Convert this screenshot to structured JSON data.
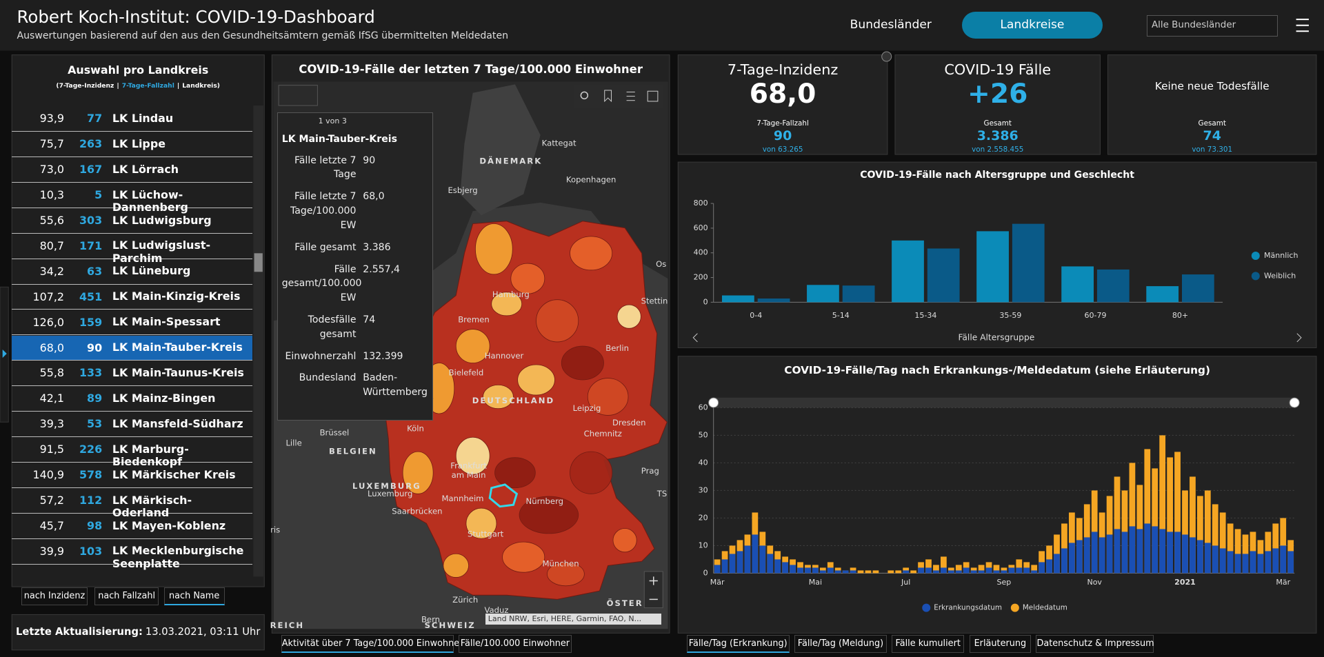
{
  "header": {
    "title": "Robert Koch-Institut: COVID-19-Dashboard",
    "subtitle": "Auswertungen basierend auf den aus den Gesundheitsämtern gemäß IfSG übermittelten Meldedaten",
    "tabs": [
      "Bundesländer",
      "Landkreise"
    ],
    "dropdown": "Alle Bundesländer"
  },
  "list": {
    "title": "Auswahl pro Landkreis",
    "subtitle": [
      "(7-Tage-Inzidenz",
      "|",
      "7-Tage-Fallzahl",
      "|",
      "Landkreis)"
    ],
    "rows": [
      {
        "incidence": "93,9",
        "cases": "77",
        "name": "LK Lindau"
      },
      {
        "incidence": "75,7",
        "cases": "263",
        "name": "LK Lippe"
      },
      {
        "incidence": "73,0",
        "cases": "167",
        "name": "LK Lörrach"
      },
      {
        "incidence": "10,3",
        "cases": "5",
        "name": "LK Lüchow-Dannenberg"
      },
      {
        "incidence": "55,6",
        "cases": "303",
        "name": "LK Ludwigsburg"
      },
      {
        "incidence": "80,7",
        "cases": "171",
        "name": "LK Ludwigslust-Parchim"
      },
      {
        "incidence": "34,2",
        "cases": "63",
        "name": "LK Lüneburg"
      },
      {
        "incidence": "107,2",
        "cases": "451",
        "name": "LK Main-Kinzig-Kreis"
      },
      {
        "incidence": "126,0",
        "cases": "159",
        "name": "LK Main-Spessart"
      },
      {
        "incidence": "68,0",
        "cases": "90",
        "name": "LK Main-Tauber-Kreis",
        "selected": true
      },
      {
        "incidence": "55,8",
        "cases": "133",
        "name": "LK Main-Taunus-Kreis"
      },
      {
        "incidence": "42,1",
        "cases": "89",
        "name": "LK Mainz-Bingen"
      },
      {
        "incidence": "39,3",
        "cases": "53",
        "name": "LK Mansfeld-Südharz"
      },
      {
        "incidence": "91,5",
        "cases": "226",
        "name": "LK Marburg-Biedenkopf"
      },
      {
        "incidence": "140,9",
        "cases": "578",
        "name": "LK Märkischer Kreis"
      },
      {
        "incidence": "57,2",
        "cases": "112",
        "name": "LK Märkisch-Oderland"
      },
      {
        "incidence": "45,7",
        "cases": "98",
        "name": "LK Mayen-Koblenz"
      },
      {
        "incidence": "39,9",
        "cases": "103",
        "name": "LK Mecklenburgische Seenplatte"
      }
    ],
    "sort_buttons": [
      "nach Inzidenz",
      "nach Fallzahl",
      "nach Name"
    ]
  },
  "update": {
    "label": "Letzte Aktualisierung:",
    "value": "13.03.2021, 03:11 Uhr"
  },
  "map": {
    "title": "COVID-19-Fälle der letzten 7 Tage/100.000 Einwohner",
    "popup": {
      "pager": "1 von 3",
      "title": "LK Main-Tauber-Kreis",
      "fields": [
        {
          "label": "Fälle letzte 7 Tage",
          "value": "90"
        },
        {
          "label": "Fälle letzte 7 Tage/100.000 EW",
          "value": "68,0"
        },
        {
          "label": "Fälle gesamt",
          "value": "3.386"
        },
        {
          "label": "Fälle gesamt/100.000 EW",
          "value": "2.557,4"
        },
        {
          "label": "Todesfälle gesamt",
          "value": "74"
        },
        {
          "label": "Einwohnerzahl",
          "value": "132.399"
        },
        {
          "label": "Bundesland",
          "value": "Baden-Württemberg"
        }
      ]
    },
    "labels": [
      "DÄNEMARK",
      "Kattegat",
      "Kopenhagen",
      "Esbjerg",
      "Hamburg",
      "Stettin",
      "Bremen",
      "Hannover",
      "Berlin",
      "Bielefeld",
      "DEUTSCHLAND",
      "Leipzig",
      "Dresden",
      "Köln",
      "Brüssel",
      "Chemnitz",
      "Lille",
      "BELGIEN",
      "Frankfurt",
      "am Main",
      "Prag",
      "LUXEMBURG",
      "Luxemburg",
      "TS",
      "Mannheim",
      "Nürnberg",
      "Saarbrücken",
      "Stuttgart",
      "ris",
      "München",
      "Zürich",
      "ÖSTER",
      "Vaduz",
      "Bern",
      "SCHWEIZ",
      "REICH",
      "Os"
    ],
    "attribution": "Land NRW, Esri, HERE, Garmin, FAO, N...",
    "tabs": [
      "Aktivität über 7 Tage/100.000 Einwohner",
      "Fälle/100.000 Einwohner"
    ]
  },
  "cards": [
    {
      "title": "7-Tage-Inzidenz",
      "value": "68,0",
      "sub_label": "7-Tage-Fallzahl",
      "sub_value": "90",
      "sub_total": "von 63.265"
    },
    {
      "title": "COVID-19 Fälle",
      "value": "+26",
      "sub_label": "Gesamt",
      "sub_value": "3.386",
      "sub_total": "von 2.558.455"
    },
    {
      "title": "Keine neue Todesfälle",
      "sub_label": "Gesamt",
      "sub_value": "74",
      "sub_total": "von 73.301"
    }
  ],
  "chart_data": [
    {
      "type": "bar",
      "title": "COVID-19-Fälle nach Altersgruppe und Geschlecht",
      "x_label": "Fälle Altersgruppe",
      "categories": [
        "0-4",
        "5-14",
        "15-34",
        "35-59",
        "60-79",
        "80+"
      ],
      "series": [
        {
          "name": "Männlich",
          "color": "#0b8bb8",
          "values": [
            55,
            140,
            500,
            575,
            290,
            130
          ]
        },
        {
          "name": "Weiblich",
          "color": "#0a5a88",
          "values": [
            30,
            135,
            435,
            635,
            265,
            225
          ]
        }
      ],
      "ylim": [
        0,
        800
      ],
      "yticks": [
        0,
        200,
        400,
        600,
        800
      ],
      "legend": "right"
    },
    {
      "type": "bar",
      "title": "COVID-19-Fälle/Tag nach Erkrankungs-/Meldedatum (siehe Erläuterung)",
      "categories": [
        "Mär",
        null,
        null,
        null,
        null,
        null,
        null,
        null,
        null,
        null,
        null,
        null,
        null,
        "Mai",
        null,
        null,
        null,
        null,
        null,
        null,
        null,
        null,
        null,
        null,
        null,
        "Jul",
        null,
        null,
        null,
        null,
        null,
        null,
        null,
        null,
        null,
        null,
        null,
        null,
        "Sep",
        null,
        null,
        null,
        null,
        null,
        null,
        null,
        null,
        null,
        null,
        null,
        "Nov",
        null,
        null,
        null,
        null,
        null,
        null,
        null,
        null,
        null,
        null,
        null,
        "2021",
        null,
        null,
        null,
        null,
        null,
        null,
        null,
        null,
        null,
        null,
        null,
        null,
        "Mär",
        null
      ],
      "series": [
        {
          "name": "Erkrankungsdatum",
          "color": "#1a4fb4",
          "values": [
            3,
            5,
            7,
            8,
            10,
            14,
            10,
            7,
            5,
            4,
            3,
            2,
            2,
            2,
            1,
            2,
            1,
            1,
            1,
            0,
            0,
            0,
            0,
            0,
            0,
            1,
            0,
            2,
            2,
            1,
            2,
            1,
            1,
            2,
            1,
            1,
            2,
            1,
            1,
            2,
            2,
            2,
            1,
            4,
            5,
            7,
            9,
            11,
            12,
            13,
            15,
            13,
            14,
            16,
            15,
            17,
            16,
            18,
            17,
            16,
            15,
            15,
            14,
            13,
            12,
            11,
            10,
            9,
            8,
            7,
            7,
            8,
            7,
            8,
            9,
            10,
            8
          ]
        },
        {
          "name": "Meldedatum",
          "color": "#f5a623",
          "values": [
            5,
            8,
            10,
            12,
            14,
            22,
            15,
            10,
            8,
            6,
            5,
            4,
            3,
            3,
            2,
            4,
            2,
            1,
            2,
            1,
            1,
            1,
            0,
            1,
            1,
            2,
            1,
            4,
            5,
            3,
            6,
            2,
            3,
            4,
            2,
            3,
            4,
            3,
            2,
            3,
            5,
            4,
            3,
            8,
            10,
            14,
            18,
            22,
            20,
            25,
            30,
            22,
            28,
            35,
            30,
            40,
            32,
            45,
            38,
            50,
            42,
            44,
            30,
            35,
            28,
            30,
            25,
            22,
            18,
            16,
            14,
            15,
            12,
            15,
            18,
            20,
            12
          ]
        }
      ],
      "ylim": [
        0,
        60
      ],
      "yticks": [
        0,
        10,
        20,
        30,
        40,
        50,
        60
      ],
      "grid": true,
      "legend": "bottom"
    }
  ],
  "bottom_tabs": [
    "Fälle/Tag (Erkrankung)",
    "Fälle/Tag (Meldung)",
    "Fälle kumuliert",
    "Erläuterung",
    "Datenschutz & Impressum"
  ]
}
